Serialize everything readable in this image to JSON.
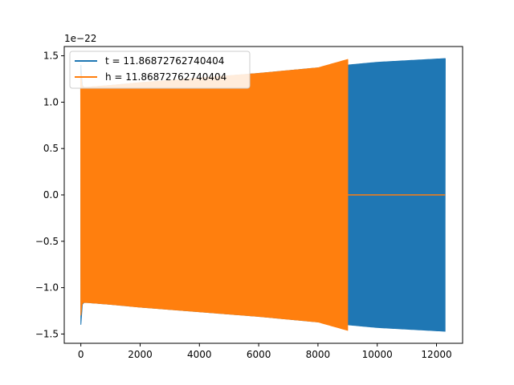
{
  "chart_data": {
    "type": "line",
    "title": "",
    "xlabel": "",
    "ylabel": "",
    "offset_text": "1e−22",
    "xlim": [
      -560,
      12880
    ],
    "ylim": [
      -1.6,
      1.6
    ],
    "xticks": [
      0,
      2000,
      4000,
      6000,
      8000,
      10000,
      12000
    ],
    "xtick_labels": [
      "0",
      "2000",
      "4000",
      "6000",
      "8000",
      "10000",
      "12000"
    ],
    "yticks": [
      -1.5,
      -1.0,
      -0.5,
      0.0,
      0.5,
      1.0,
      1.5
    ],
    "ytick_labels": [
      "−1.5",
      "−1.0",
      "−0.5",
      "0.0",
      "0.5",
      "1.0",
      "1.5"
    ],
    "grid": false,
    "legend_position": "top-left",
    "series": [
      {
        "name": "t = 11.86872762740404",
        "color": "#1f77b4",
        "style": "dense-oscillation",
        "x_range": [
          0,
          12288
        ],
        "envelope": {
          "x": [
            0,
            20,
            60,
            200,
            1000,
            2000,
            4000,
            6000,
            8000,
            9000,
            10000,
            12288
          ],
          "upper": [
            1.4,
            1.25,
            1.16,
            1.16,
            1.18,
            1.21,
            1.26,
            1.31,
            1.37,
            1.4,
            1.43,
            1.47
          ],
          "lower": [
            -1.4,
            -1.25,
            -1.16,
            -1.16,
            -1.18,
            -1.21,
            -1.26,
            -1.31,
            -1.37,
            -1.4,
            -1.43,
            -1.47
          ]
        }
      },
      {
        "name": "h = 11.86872762740404",
        "color": "#ff7f0e",
        "style": "dense-oscillation-then-zero",
        "x_range": [
          0,
          12288
        ],
        "oscillation_end_x": 9000,
        "value_after_end": 0.0,
        "envelope": {
          "x": [
            0,
            20,
            60,
            200,
            1000,
            2000,
            4000,
            6000,
            8000,
            9000
          ],
          "upper": [
            1.3,
            1.2,
            1.16,
            1.16,
            1.18,
            1.21,
            1.26,
            1.31,
            1.37,
            1.46
          ],
          "lower": [
            -1.3,
            -1.2,
            -1.16,
            -1.16,
            -1.18,
            -1.21,
            -1.26,
            -1.31,
            -1.37,
            -1.46
          ]
        }
      }
    ]
  }
}
